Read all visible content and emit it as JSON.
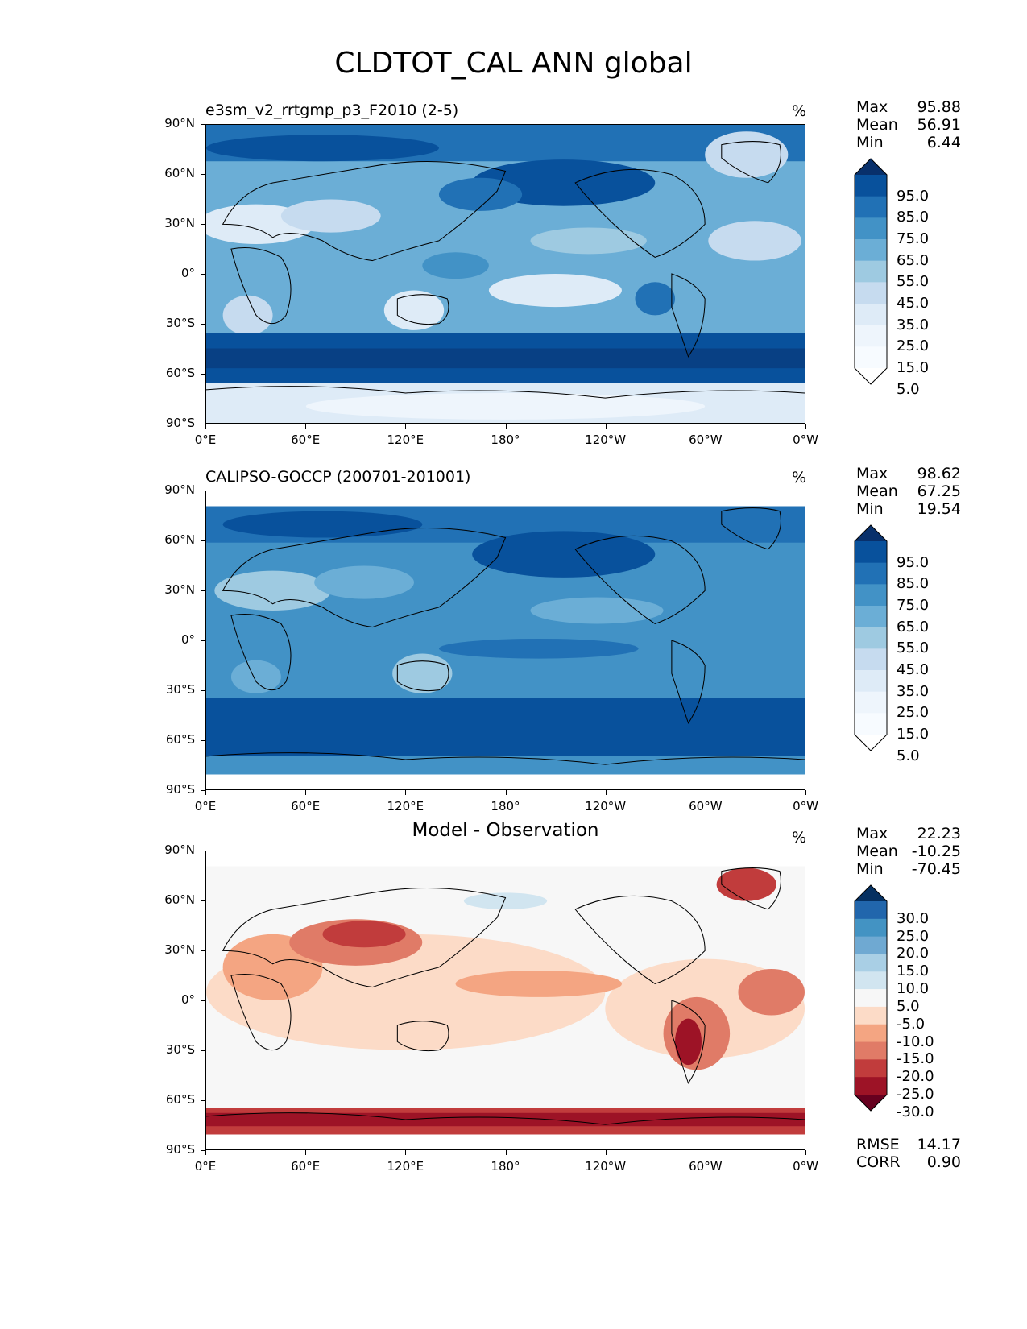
{
  "title": "CLDTOT_CAL ANN global",
  "axes": {
    "y_ticks": [
      "90°N",
      "60°N",
      "30°N",
      "0°",
      "30°S",
      "60°S",
      "90°S"
    ],
    "x_ticks": [
      "0°E",
      "60°E",
      "120°E",
      "180°",
      "120°W",
      "60°W",
      "0°W"
    ]
  },
  "panels": [
    {
      "id": "test",
      "title": "e3sm_v2_rrtgmp_p3_F2010 (2-5)",
      "title_align": "left",
      "unit": "%",
      "stats": [
        {
          "label": "Max",
          "value": "95.88"
        },
        {
          "label": "Mean",
          "value": "56.91"
        },
        {
          "label": "Min",
          "value": "6.44"
        }
      ],
      "colorbar": {
        "labels": [
          "95.0",
          "85.0",
          "75.0",
          "65.0",
          "55.0",
          "45.0",
          "35.0",
          "25.0",
          "15.0",
          "5.0"
        ],
        "colors": [
          "#08306b",
          "#08519c",
          "#2171b5",
          "#4292c6",
          "#6baed6",
          "#9ecae1",
          "#c6dbef",
          "#deebf7",
          "#eef5fc",
          "#f7fbff",
          "#ffffff"
        ]
      }
    },
    {
      "id": "reference",
      "title": "CALIPSO-GOCCP (200701-201001)",
      "title_align": "left",
      "unit": "%",
      "stats": [
        {
          "label": "Max",
          "value": "98.62"
        },
        {
          "label": "Mean",
          "value": "67.25"
        },
        {
          "label": "Min",
          "value": "19.54"
        }
      ],
      "colorbar": {
        "labels": [
          "95.0",
          "85.0",
          "75.0",
          "65.0",
          "55.0",
          "45.0",
          "35.0",
          "25.0",
          "15.0",
          "5.0"
        ],
        "colors": [
          "#08306b",
          "#08519c",
          "#2171b5",
          "#4292c6",
          "#6baed6",
          "#9ecae1",
          "#c6dbef",
          "#deebf7",
          "#eef5fc",
          "#f7fbff",
          "#ffffff"
        ]
      }
    },
    {
      "id": "difference",
      "title": "Model - Observation",
      "title_align": "center",
      "unit": "%",
      "stats": [
        {
          "label": "Max",
          "value": "22.23"
        },
        {
          "label": "Mean",
          "value": "-10.25"
        },
        {
          "label": "Min",
          "value": "-70.45"
        }
      ],
      "colorbar": {
        "labels": [
          "30.0",
          "25.0",
          "20.0",
          "15.0",
          "10.0",
          "5.0",
          "-5.0",
          "-10.0",
          "-15.0",
          "-20.0",
          "-25.0",
          "-30.0"
        ],
        "colors": [
          "#053061",
          "#2166ac",
          "#4393c3",
          "#6fa9d2",
          "#a9cfe5",
          "#d1e5f0",
          "#f7f7f7",
          "#fcdbc7",
          "#f4a582",
          "#e07b67",
          "#c13c3c",
          "#9d1326",
          "#67001f"
        ]
      },
      "metrics": [
        {
          "label": "RMSE",
          "value": "14.17"
        },
        {
          "label": "CORR",
          "value": "0.90"
        }
      ]
    }
  ]
}
